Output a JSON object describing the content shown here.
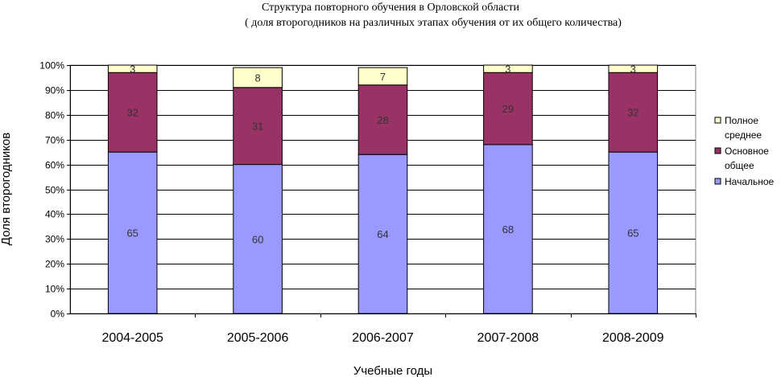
{
  "chart_data": {
    "type": "bar",
    "stacked": true,
    "title": "Структура повторного обучения в Орловской области",
    "subtitle": "( доля второгодников на различных этапах обучения от их общего количества)",
    "xlabel": "Учебные годы",
    "ylabel": "Доля второгодников",
    "ylim": [
      0,
      100
    ],
    "yticks": [
      "0%",
      "10%",
      "20%",
      "30%",
      "40%",
      "50%",
      "60%",
      "70%",
      "80%",
      "90%",
      "100%"
    ],
    "categories": [
      "2004-2005",
      "2005-2006",
      "2006-2007",
      "2007-2008",
      "2008-2009"
    ],
    "series": [
      {
        "name": "Начальное",
        "values": [
          65,
          60,
          64,
          68,
          65
        ],
        "color": "#9999ff"
      },
      {
        "name": "Основное общее",
        "values": [
          32,
          31,
          28,
          29,
          32
        ],
        "color": "#993366"
      },
      {
        "name": "Полное среднее",
        "values": [
          3,
          8,
          7,
          3,
          3
        ],
        "color": "#ffffcc"
      }
    ],
    "legend": {
      "position": "right",
      "entries": [
        {
          "lines": [
            "Полное",
            "среднее"
          ],
          "color": "#ffffcc"
        },
        {
          "lines": [
            "Основное",
            "общее"
          ],
          "color": "#993366"
        },
        {
          "lines": [
            "Начальное"
          ],
          "color": "#9999ff"
        }
      ]
    },
    "grid": true,
    "plot_background": "#ffffff"
  }
}
